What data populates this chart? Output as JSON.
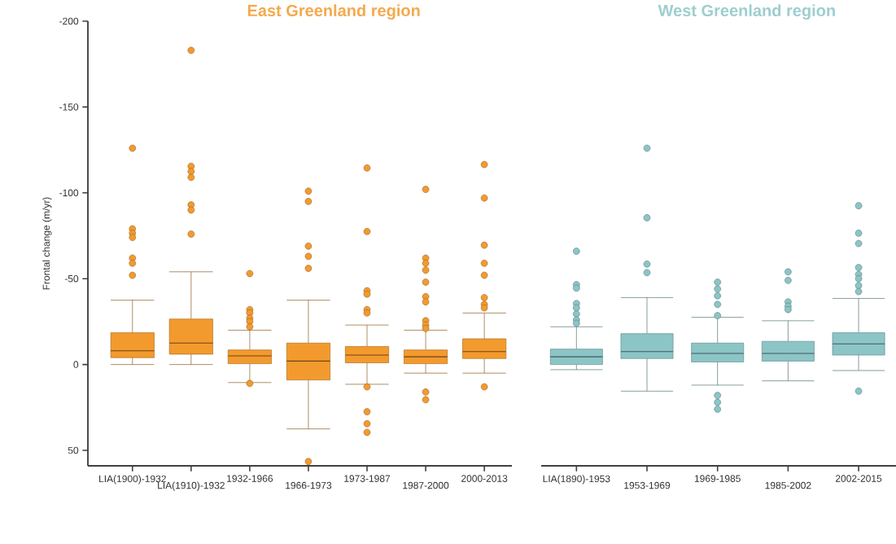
{
  "chart_data": [
    {
      "type": "box",
      "title": "East Greenland region",
      "ylabel": "Frontal change (m/yr)",
      "color": "#f39a2e",
      "categories": [
        "LIA(1900)-1932",
        "LIA(1910)-1932",
        "1932-1966",
        "1966-1973",
        "1973-1987",
        "1987-2000",
        "2000-2013"
      ],
      "ylim": [
        59,
        -200
      ],
      "yticks": [
        -200,
        -150,
        -100,
        -50,
        0,
        50
      ],
      "boxes": [
        {
          "low": -37.5,
          "q1": -18.5,
          "median": -8,
          "q3": -4,
          "high": 0,
          "outliers": [
            -126,
            -79,
            -76.5,
            -74,
            -62,
            -59,
            -52
          ]
        },
        {
          "low": -54,
          "q1": -26.5,
          "median": -12.5,
          "q3": -6,
          "high": 0,
          "outliers": [
            -183,
            -115.5,
            -112.5,
            -109,
            -93,
            -90,
            -76
          ]
        },
        {
          "low": -20,
          "q1": -8.5,
          "median": -5,
          "q3": -0.5,
          "high": 10.5,
          "outliers": [
            -53,
            -32,
            -30,
            -27,
            -25,
            -22,
            11
          ]
        },
        {
          "low": -37.5,
          "q1": -12.5,
          "median": -2,
          "q3": 9,
          "high": 37.5,
          "outliers": [
            -101,
            -95,
            -69,
            -63,
            -56,
            56.5
          ]
        },
        {
          "low": -23,
          "q1": -10.5,
          "median": -5.5,
          "q3": -1,
          "high": 11.5,
          "outliers": [
            -114.5,
            -77.5,
            -43,
            -41,
            -32,
            -30,
            13,
            27.5,
            34.5,
            39.5
          ]
        },
        {
          "low": -20,
          "q1": -8.5,
          "median": -4.5,
          "q3": -0.5,
          "high": 5,
          "outliers": [
            -102,
            -62,
            -59,
            -55,
            -48,
            -39.5,
            -36.5,
            -25.5,
            -23,
            -21,
            16,
            20.5
          ]
        },
        {
          "low": -30,
          "q1": -15,
          "median": -7.5,
          "q3": -3.5,
          "high": 5,
          "outliers": [
            -116.5,
            -97,
            -69.5,
            -59,
            -52,
            -39,
            -35,
            -33,
            13
          ]
        }
      ]
    },
    {
      "type": "box",
      "title": "West Greenland region",
      "color": "#8cc5c6",
      "tick_labels": "x",
      "categories": [
        "LIA(1890)-1953",
        "1953-1969",
        "1969-1985",
        "1985-2002",
        "2002-2015"
      ],
      "ylim": [
        59,
        -200
      ],
      "boxes": [
        {
          "low": -22,
          "q1": -9,
          "median": -4.5,
          "q3": 0,
          "high": 3,
          "outliers": [
            -66,
            -46.5,
            -44.5,
            -35.5,
            -33,
            -29.5,
            -26,
            -24
          ]
        },
        {
          "low": -39,
          "q1": -18,
          "median": -7.5,
          "q3": -3.5,
          "high": 15.5,
          "outliers": [
            -126,
            -85.5,
            -58.5,
            -53.5
          ]
        },
        {
          "low": -27.5,
          "q1": -12.5,
          "median": -6.5,
          "q3": -1.5,
          "high": 12,
          "outliers": [
            -48,
            -44,
            -40,
            -35,
            -28.5,
            18,
            22,
            26
          ]
        },
        {
          "low": -25.5,
          "q1": -13.5,
          "median": -6.5,
          "q3": -2,
          "high": 9.5,
          "outliers": [
            -54,
            -49,
            -36.5,
            -34,
            -32
          ]
        },
        {
          "low": -38.5,
          "q1": -18.5,
          "median": -12,
          "q3": -5.5,
          "high": 3.5,
          "outliers": [
            -92.5,
            -76.5,
            -70.5,
            -56.5,
            -52.5,
            -50,
            -46,
            -42.5,
            15.5
          ]
        }
      ]
    }
  ]
}
